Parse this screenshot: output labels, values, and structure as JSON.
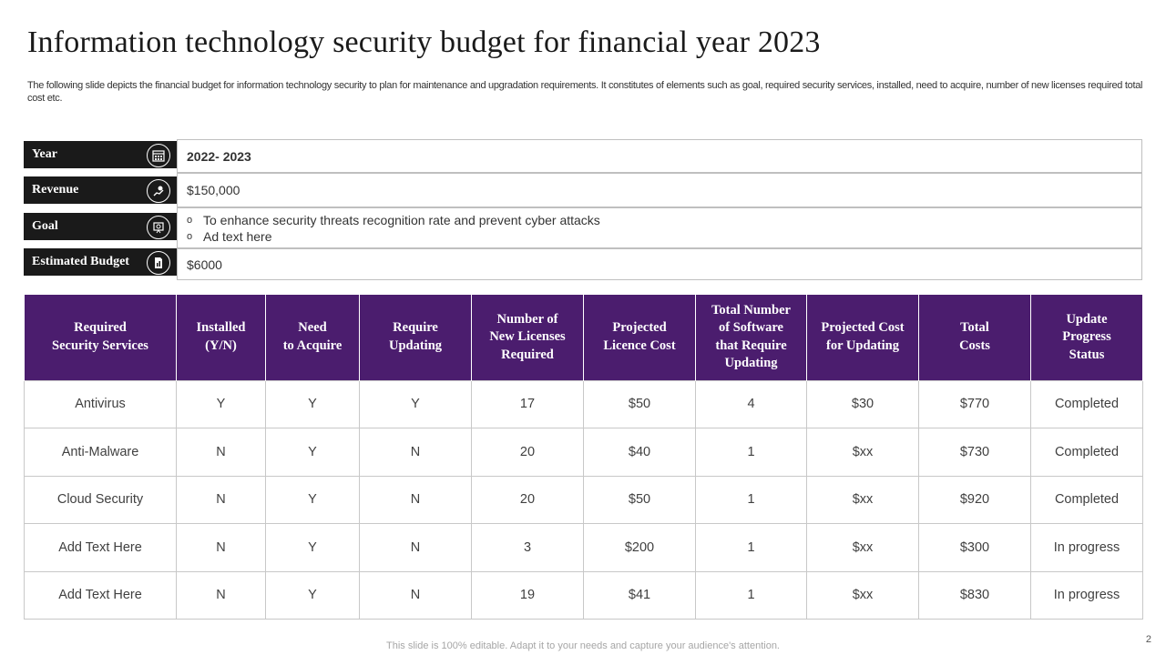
{
  "slide": {
    "title": "Information technology security budget for financial year 2023",
    "subtitle": "The following slide depicts the financial budget for information technology security to plan for maintenance and upgradation requirements. It constitutes of elements such as goal, required security services, installed, need to acquire, number of new licenses required total cost etc.",
    "footer": "This slide is 100% editable. Adapt it to your needs and capture your audience's attention.",
    "page_number": "2"
  },
  "info": {
    "year": {
      "label": "Year",
      "value": "2022- 2023",
      "icon": "calendar-icon"
    },
    "revenue": {
      "label": "Revenue",
      "value": "$150,000",
      "icon": "money-hand-icon"
    },
    "goal": {
      "label": "Goal",
      "values": [
        "To enhance security threats recognition rate and prevent cyber attacks",
        "Ad text here"
      ],
      "icon": "target-presentation-icon"
    },
    "budget": {
      "label": "Estimated Budget",
      "value": "$6000",
      "icon": "budget-document-icon"
    }
  },
  "table": {
    "headers": [
      "Required\nSecurity Services",
      "Installed\n(Y/N)",
      "Need\nto Acquire",
      "Require\nUpdating",
      "Number of\nNew Licenses\nRequired",
      "Projected\nLicence Cost",
      "Total Number\nof Software\nthat Require\nUpdating",
      "Projected Cost\nfor Updating",
      "Total\nCosts",
      "Update\nProgress\nStatus"
    ],
    "rows": [
      [
        "Antivirus",
        "Y",
        "Y",
        "Y",
        "17",
        "$50",
        "4",
        "$30",
        "$770",
        "Completed"
      ],
      [
        "Anti-Malware",
        "N",
        "Y",
        "N",
        "20",
        "$40",
        "1",
        "$xx",
        "$730",
        "Completed"
      ],
      [
        "Cloud Security",
        "N",
        "Y",
        "N",
        "20",
        "$50",
        "1",
        "$xx",
        "$920",
        "Completed"
      ],
      [
        "Add Text Here",
        "N",
        "Y",
        "N",
        "3",
        "$200",
        "1",
        "$xx",
        "$300",
        "In progress"
      ],
      [
        "Add Text Here",
        "N",
        "Y",
        "N",
        "19",
        "$41",
        "1",
        "$xx",
        "$830",
        "In progress"
      ]
    ]
  },
  "colors": {
    "header_bg": "#4b1d6e",
    "label_bg": "#1a1a1a"
  }
}
